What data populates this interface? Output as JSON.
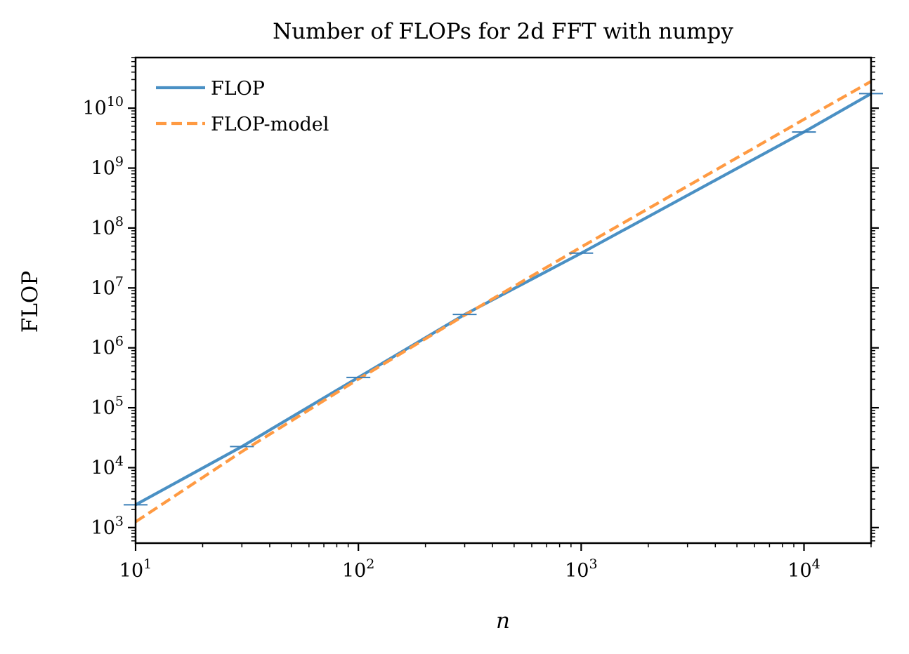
{
  "chart_data": {
    "type": "line",
    "title": "Number of FLOPs for 2d FFT with numpy",
    "xlabel": "n",
    "ylabel": "FLOP",
    "xscale": "log",
    "yscale": "log",
    "xlim": [
      10,
      20000
    ],
    "ylim": [
      550,
      70000000000
    ],
    "grid": false,
    "legend_position": "upper-left",
    "x_ticks": [
      {
        "value": 10,
        "base": "10",
        "exp": "1"
      },
      {
        "value": 100,
        "base": "10",
        "exp": "2"
      },
      {
        "value": 1000,
        "base": "10",
        "exp": "3"
      },
      {
        "value": 10000,
        "base": "10",
        "exp": "4"
      }
    ],
    "y_ticks": [
      {
        "value": 1000,
        "base": "10",
        "exp": "3"
      },
      {
        "value": 10000,
        "base": "10",
        "exp": "4"
      },
      {
        "value": 100000,
        "base": "10",
        "exp": "5"
      },
      {
        "value": 1000000,
        "base": "10",
        "exp": "6"
      },
      {
        "value": 10000000,
        "base": "10",
        "exp": "7"
      },
      {
        "value": 100000000,
        "base": "10",
        "exp": "8"
      },
      {
        "value": 1000000000,
        "base": "10",
        "exp": "9"
      },
      {
        "value": 10000000000,
        "base": "10",
        "exp": "10"
      }
    ],
    "series": [
      {
        "name": "FLOP",
        "color": "#4a90c4",
        "style": "solid",
        "x": [
          10,
          30,
          100,
          300,
          1000,
          10000,
          20000
        ],
        "y": [
          2400,
          22500,
          320000,
          3600000,
          38000000,
          4000000000,
          17500000000
        ]
      },
      {
        "name": "FLOP-model",
        "color": "#ff9a42",
        "style": "dashed",
        "x": [
          10,
          30,
          100,
          300,
          1000,
          10000,
          20000
        ],
        "y": [
          1250,
          18500,
          300000,
          3500000,
          48000000,
          6500000000,
          28000000000
        ]
      }
    ],
    "markers": {
      "series": "FLOP",
      "color": "#3a7fb8",
      "style": "horizontal-tick",
      "x": [
        10,
        30,
        100,
        300,
        1000,
        10000,
        20000
      ],
      "y": [
        2400,
        22500,
        320000,
        3600000,
        38000000,
        4000000000,
        17500000000
      ]
    }
  }
}
